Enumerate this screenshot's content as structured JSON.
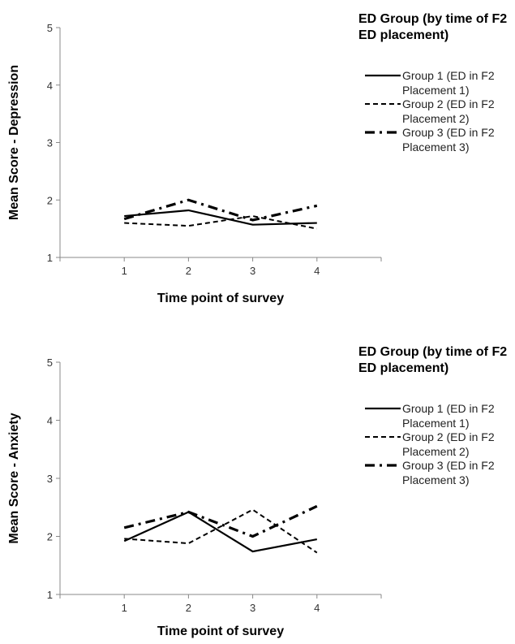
{
  "chart_data": [
    {
      "type": "line",
      "title": "",
      "xlabel": "Time point of survey",
      "ylabel": "Mean Score - Depression",
      "x": [
        1,
        2,
        3,
        4
      ],
      "xlim": [
        0,
        5
      ],
      "ylim": [
        1,
        5
      ],
      "yticks": [
        1,
        2,
        3,
        4,
        5
      ],
      "grid": false,
      "legend_title": "ED Group (by time of F2 ED placement)",
      "legend_position": "right",
      "series": [
        {
          "name": "Group 1 (ED in F2 Placement 1)",
          "style": "solid",
          "values": [
            1.72,
            1.82,
            1.57,
            1.6
          ]
        },
        {
          "name": "Group 2 (ED in F2 Placement 2)",
          "style": "dashed",
          "values": [
            1.6,
            1.55,
            1.72,
            1.5
          ]
        },
        {
          "name": "Group 3 (ED in F2 Placement 3)",
          "style": "dashdot",
          "values": [
            1.67,
            2.0,
            1.65,
            1.9
          ]
        }
      ]
    },
    {
      "type": "line",
      "title": "",
      "xlabel": "Time point of survey",
      "ylabel": "Mean Score - Anxiety",
      "x": [
        1,
        2,
        3,
        4
      ],
      "xlim": [
        0,
        5
      ],
      "ylim": [
        1,
        5
      ],
      "yticks": [
        1,
        2,
        3,
        4,
        5
      ],
      "grid": false,
      "legend_title": "ED Group (by time of F2 ED placement)",
      "legend_position": "right",
      "series": [
        {
          "name": "Group 1 (ED in F2 Placement 1)",
          "style": "solid",
          "values": [
            1.92,
            2.42,
            1.74,
            1.95
          ]
        },
        {
          "name": "Group 2 (ED in F2 Placement 2)",
          "style": "dashed",
          "values": [
            1.96,
            1.88,
            2.46,
            1.72
          ]
        },
        {
          "name": "Group 3 (ED in F2 Placement 3)",
          "style": "dashdot",
          "values": [
            2.15,
            2.42,
            2.0,
            2.52
          ]
        }
      ]
    }
  ]
}
